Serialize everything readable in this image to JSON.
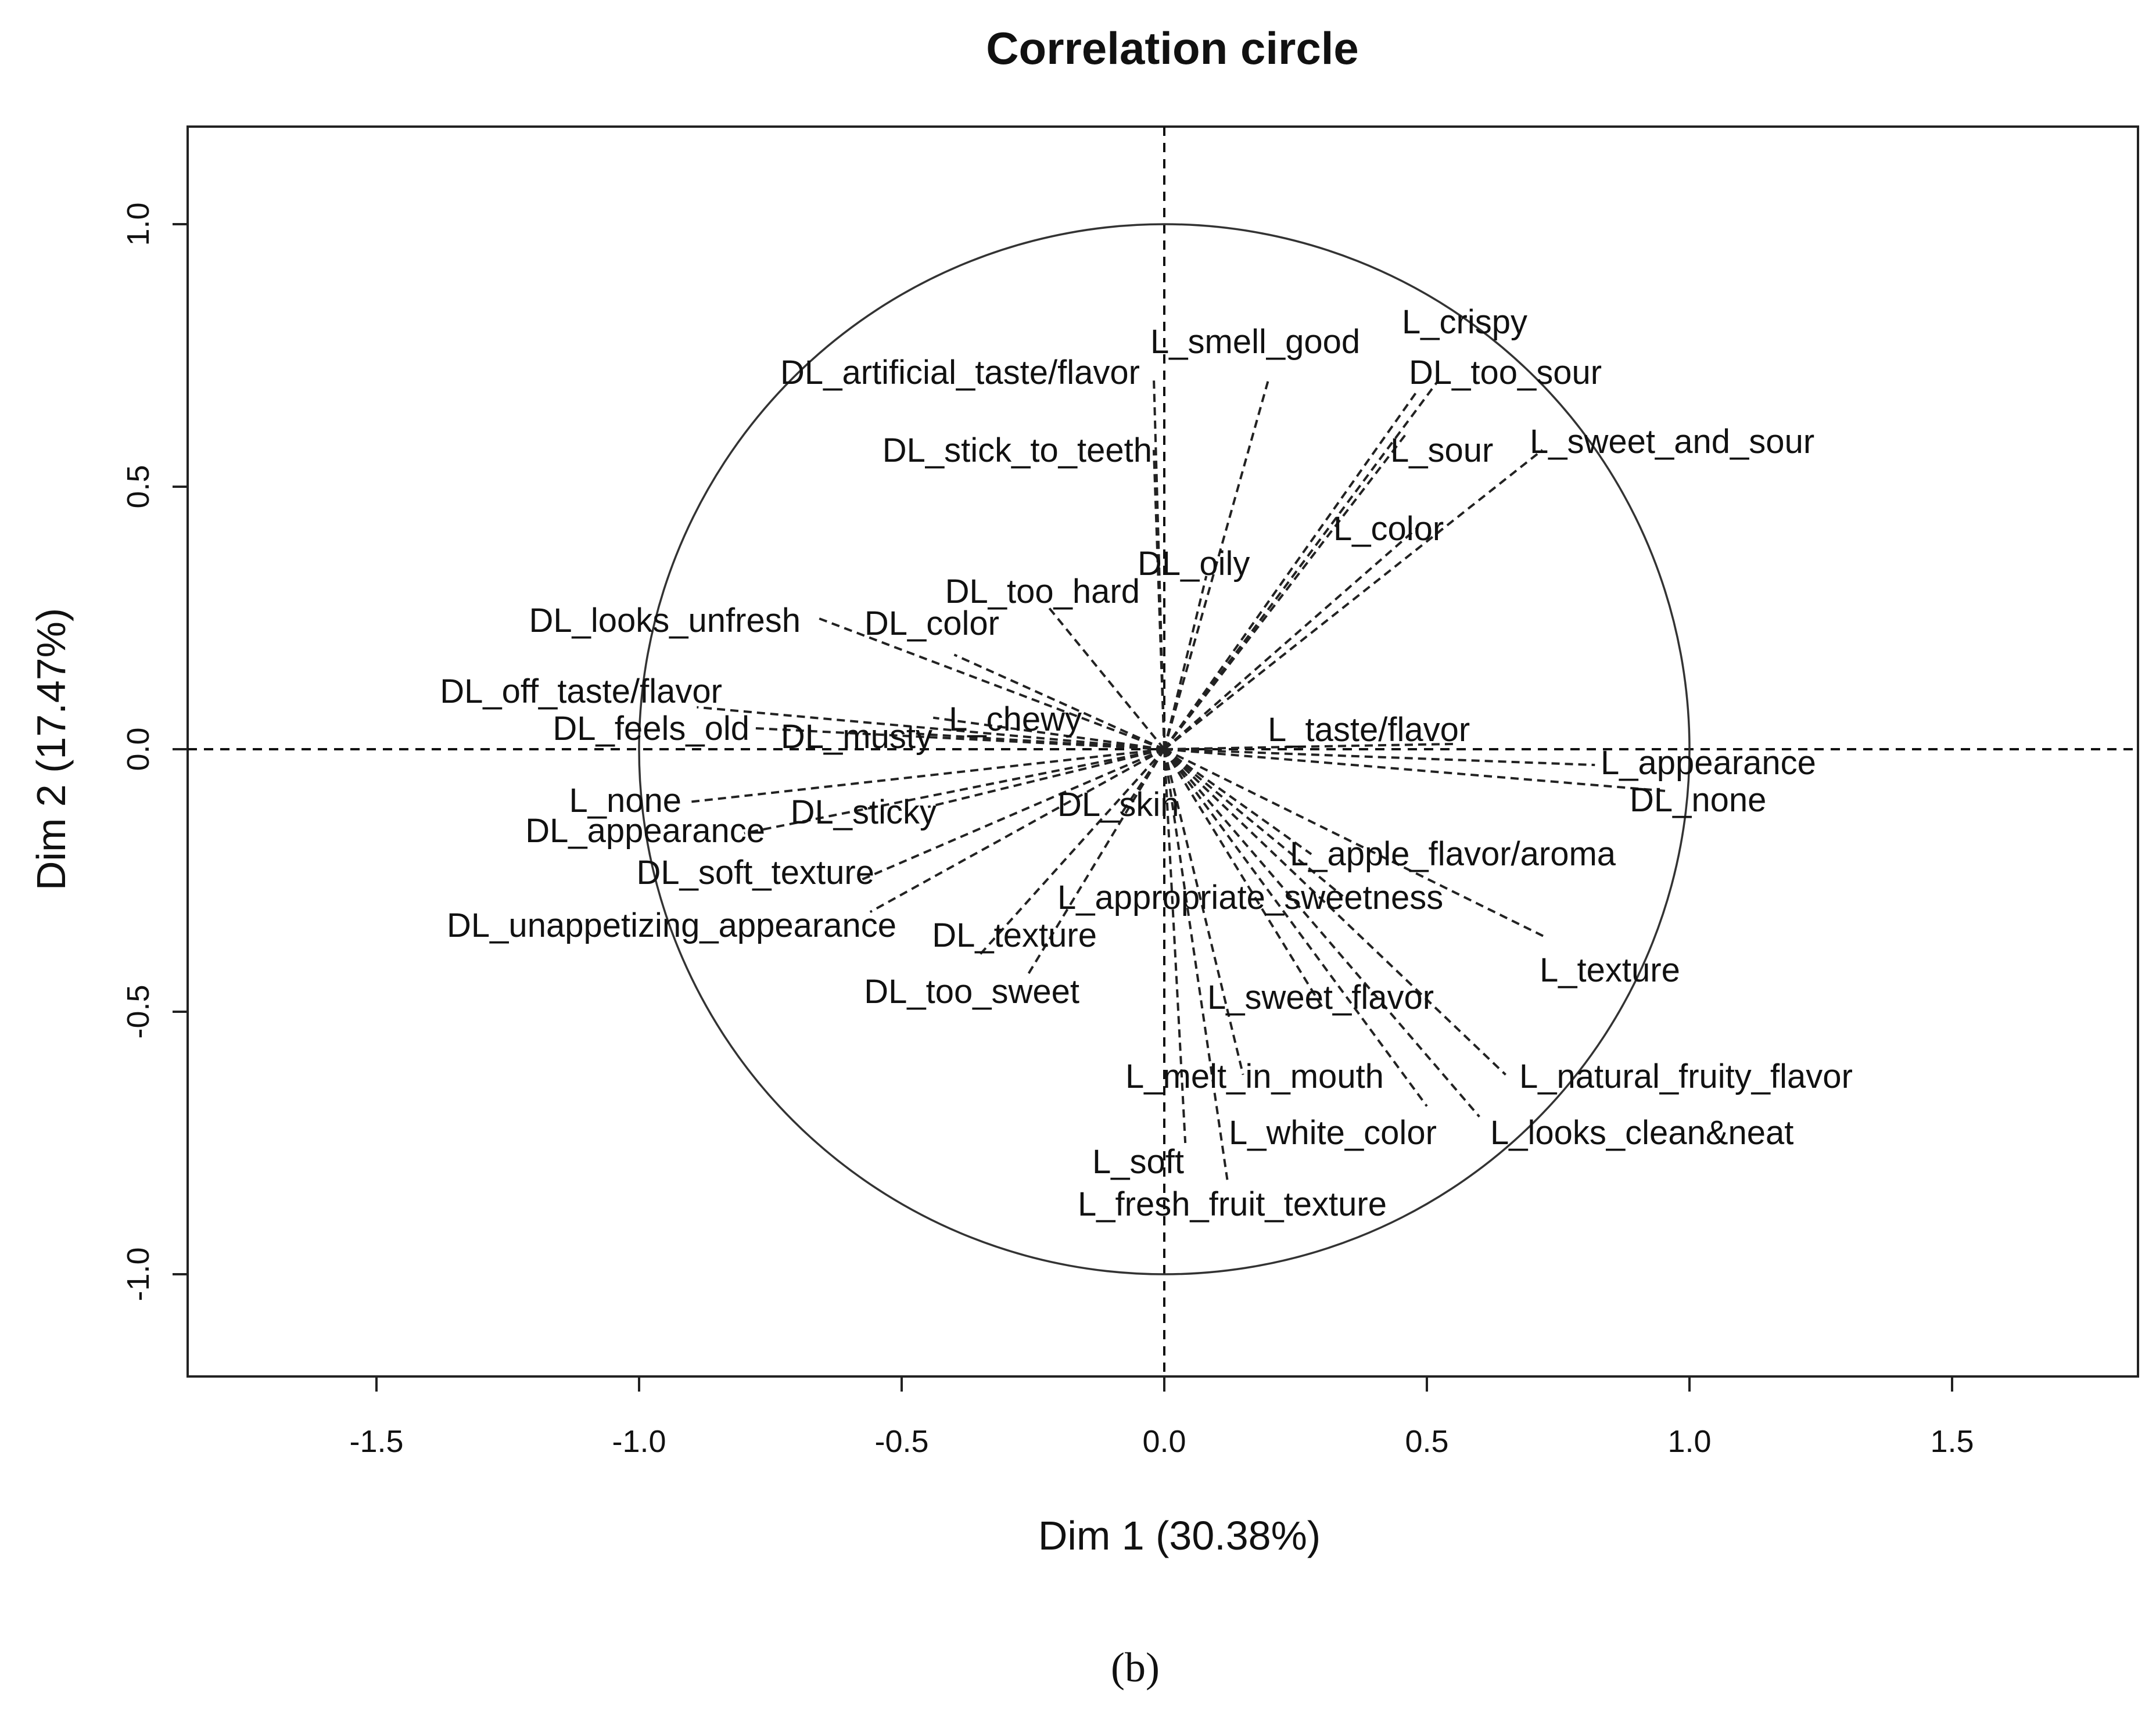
{
  "chart_data": {
    "type": "scatter",
    "title": "Correlation circle",
    "xlabel": "Dim 1 (30.38%)",
    "ylabel": "Dim 2 (17.47%)",
    "xlim": [
      -1.87,
      1.87
    ],
    "ylim": [
      -1.19,
      1.19
    ],
    "x_ticks": [
      -1.5,
      -1.0,
      -0.5,
      0.0,
      0.5,
      1.0,
      1.5
    ],
    "x_tick_labels": [
      "-1.5",
      "-1.0",
      "-0.5",
      "0.0",
      "0.5",
      "1.0",
      "1.5"
    ],
    "y_ticks": [
      -1.0,
      -0.5,
      0.0,
      0.5,
      1.0
    ],
    "y_tick_labels": [
      "-1.0",
      "-0.5",
      "0.0",
      "0.5",
      "1.0"
    ],
    "grid": false,
    "unit_circle": true,
    "variables": [
      {
        "name": "L_crispy",
        "x": 0.48,
        "y": 0.68
      },
      {
        "name": "DL_too_sour",
        "x": 0.52,
        "y": 0.7
      },
      {
        "name": "L_smell_good",
        "x": 0.2,
        "y": 0.71
      },
      {
        "name": "DL_artificial_taste/flavor",
        "x": -0.02,
        "y": 0.71
      },
      {
        "name": "L_sour",
        "x": 0.46,
        "y": 0.6
      },
      {
        "name": "L_sweet_and_sour",
        "x": 0.72,
        "y": 0.57
      },
      {
        "name": "DL_stick_to_teeth",
        "x": -0.02,
        "y": 0.57
      },
      {
        "name": "L_color",
        "x": 0.48,
        "y": 0.42
      },
      {
        "name": "DL_oily",
        "x": 0.08,
        "y": 0.33
      },
      {
        "name": "DL_too_hard",
        "x": -0.22,
        "y": 0.27
      },
      {
        "name": "DL_looks_unfresh",
        "x": -0.66,
        "y": 0.25
      },
      {
        "name": "DL_color",
        "x": -0.4,
        "y": 0.18
      },
      {
        "name": "DL_off_taste/flavor",
        "x": -0.89,
        "y": 0.08
      },
      {
        "name": "L_chewy",
        "x": -0.44,
        "y": 0.06
      },
      {
        "name": "DL_feels_old",
        "x": -0.78,
        "y": 0.04
      },
      {
        "name": "DL_musty",
        "x": -0.48,
        "y": 0.03
      },
      {
        "name": "L_taste/flavor",
        "x": 0.55,
        "y": 0.01
      },
      {
        "name": "L_appearance",
        "x": 0.82,
        "y": -0.03
      },
      {
        "name": "DL_none",
        "x": 0.96,
        "y": -0.08
      },
      {
        "name": "L_none",
        "x": -0.9,
        "y": -0.1
      },
      {
        "name": "DL_sticky",
        "x": -0.45,
        "y": -0.11
      },
      {
        "name": "DL_skin",
        "x": -0.08,
        "y": -0.12
      },
      {
        "name": "DL_appearance",
        "x": -0.8,
        "y": -0.16
      },
      {
        "name": "DL_soft_texture",
        "x": -0.58,
        "y": -0.25
      },
      {
        "name": "L_apple_flavor/aroma",
        "x": 0.28,
        "y": -0.2
      },
      {
        "name": "L_appropriate_sweetness",
        "x": 0.34,
        "y": -0.28
      },
      {
        "name": "DL_unappetizing_appearance",
        "x": -0.56,
        "y": -0.31
      },
      {
        "name": "DL_texture",
        "x": -0.35,
        "y": -0.39
      },
      {
        "name": "L_texture",
        "x": 0.73,
        "y": -0.36
      },
      {
        "name": "DL_too_sweet",
        "x": -0.26,
        "y": -0.43
      },
      {
        "name": "L_sweet_flavor",
        "x": 0.3,
        "y": -0.49
      },
      {
        "name": "L_natural_fruity_flavor",
        "x": 0.65,
        "y": -0.62
      },
      {
        "name": "L_melt_in_mouth",
        "x": 0.15,
        "y": -0.62
      },
      {
        "name": "L_white_color",
        "x": 0.5,
        "y": -0.68
      },
      {
        "name": "L_looks_clean&neat",
        "x": 0.6,
        "y": -0.7
      },
      {
        "name": "L_soft",
        "x": 0.04,
        "y": -0.75
      },
      {
        "name": "L_fresh_fruit_texture",
        "x": 0.12,
        "y": -0.82
      }
    ]
  },
  "caption": "(b)"
}
